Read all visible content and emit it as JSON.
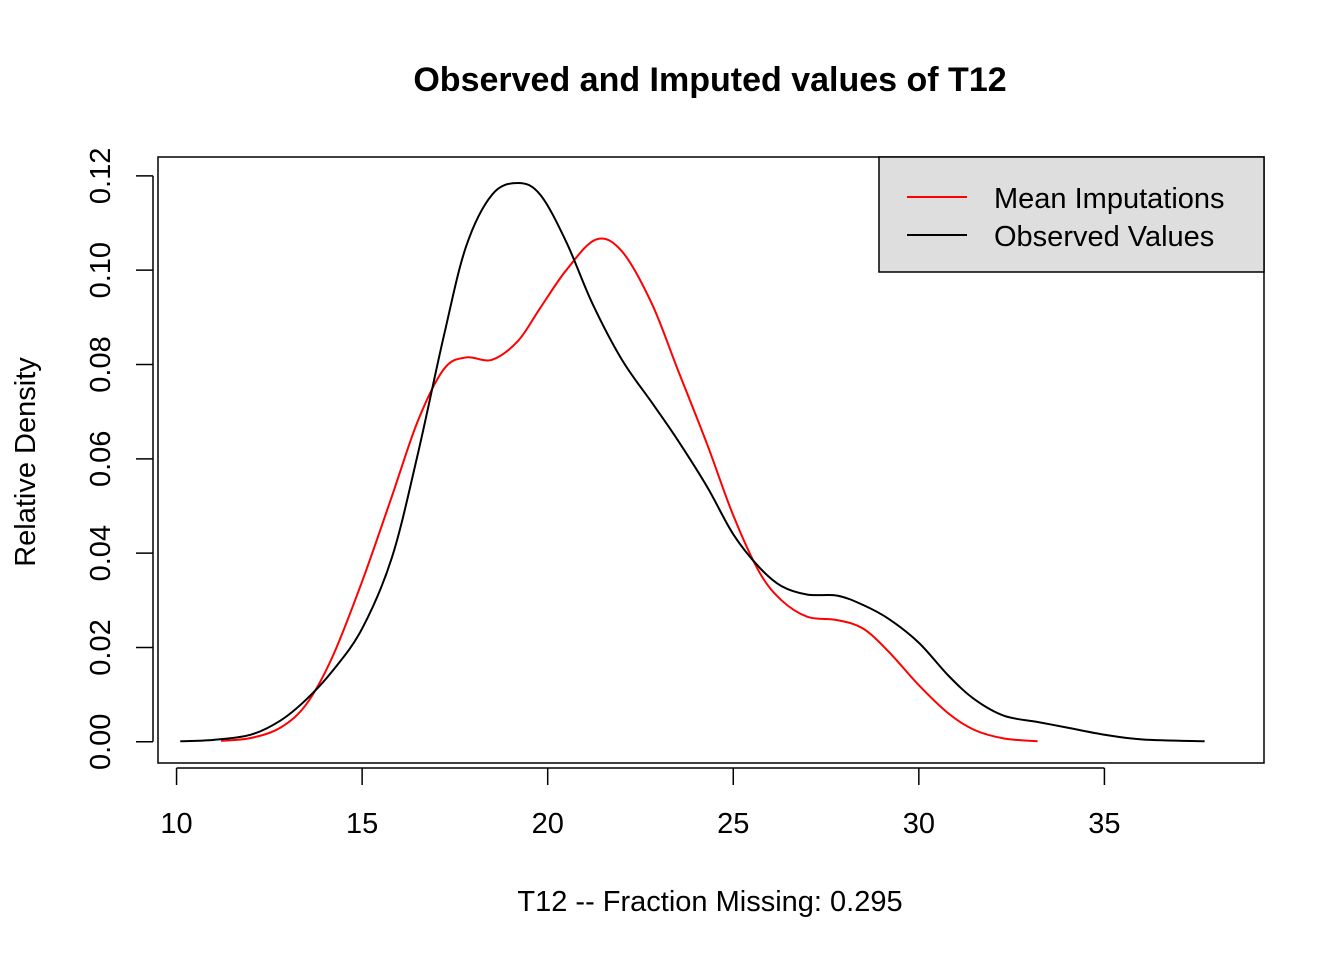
{
  "chart_data": {
    "type": "line",
    "title": "Observed and Imputed values of T12",
    "xlabel": "T12   --  Fraction Missing: 0.295",
    "ylabel": "Relative Density",
    "xlim": [
      9.5,
      39.3
    ],
    "ylim": [
      -0.0045,
      0.124
    ],
    "x_ticks": [
      10,
      15,
      20,
      25,
      30,
      35
    ],
    "y_ticks": [
      0.0,
      0.02,
      0.04,
      0.06,
      0.08,
      0.1,
      0.12
    ],
    "x_tick_labels": [
      "10",
      "15",
      "20",
      "25",
      "30",
      "35"
    ],
    "y_tick_labels": [
      "0.00",
      "0.02",
      "0.04",
      "0.06",
      "0.08",
      "0.10",
      "0.12"
    ],
    "grid": false,
    "legend_position": "top-right",
    "legend_background": "#dedede",
    "series": [
      {
        "name": "Mean Imputations",
        "color": "#ff0000",
        "points": [
          [
            11.2,
            0.0002
          ],
          [
            12.0,
            0.0008
          ],
          [
            12.8,
            0.003
          ],
          [
            13.5,
            0.008
          ],
          [
            14.2,
            0.018
          ],
          [
            15.0,
            0.034
          ],
          [
            15.8,
            0.052
          ],
          [
            16.5,
            0.068
          ],
          [
            17.2,
            0.079
          ],
          [
            17.8,
            0.0815
          ],
          [
            18.5,
            0.081
          ],
          [
            19.2,
            0.085
          ],
          [
            19.8,
            0.092
          ],
          [
            20.5,
            0.1
          ],
          [
            21.3,
            0.1065
          ],
          [
            22.0,
            0.104
          ],
          [
            22.8,
            0.093
          ],
          [
            23.5,
            0.079
          ],
          [
            24.3,
            0.063
          ],
          [
            25.0,
            0.048
          ],
          [
            25.7,
            0.036
          ],
          [
            26.3,
            0.03
          ],
          [
            27.0,
            0.0265
          ],
          [
            27.8,
            0.0258
          ],
          [
            28.5,
            0.024
          ],
          [
            29.2,
            0.019
          ],
          [
            30.0,
            0.012
          ],
          [
            30.8,
            0.006
          ],
          [
            31.5,
            0.0025
          ],
          [
            32.3,
            0.0007
          ],
          [
            33.2,
            0.0001
          ]
        ]
      },
      {
        "name": "Observed Values",
        "color": "#000000",
        "points": [
          [
            10.1,
            0.0001
          ],
          [
            11.0,
            0.0004
          ],
          [
            12.0,
            0.0015
          ],
          [
            12.8,
            0.0045
          ],
          [
            13.5,
            0.009
          ],
          [
            14.2,
            0.015
          ],
          [
            15.0,
            0.024
          ],
          [
            15.8,
            0.039
          ],
          [
            16.5,
            0.061
          ],
          [
            17.2,
            0.086
          ],
          [
            17.8,
            0.105
          ],
          [
            18.5,
            0.116
          ],
          [
            19.2,
            0.1185
          ],
          [
            19.8,
            0.116
          ],
          [
            20.5,
            0.106
          ],
          [
            21.2,
            0.093
          ],
          [
            22.0,
            0.081
          ],
          [
            22.8,
            0.072
          ],
          [
            23.5,
            0.064
          ],
          [
            24.3,
            0.054
          ],
          [
            25.0,
            0.044
          ],
          [
            25.7,
            0.037
          ],
          [
            26.3,
            0.033
          ],
          [
            27.0,
            0.0312
          ],
          [
            27.8,
            0.031
          ],
          [
            28.5,
            0.029
          ],
          [
            29.2,
            0.026
          ],
          [
            30.0,
            0.021
          ],
          [
            30.8,
            0.014
          ],
          [
            31.5,
            0.009
          ],
          [
            32.3,
            0.0055
          ],
          [
            33.2,
            0.0042
          ],
          [
            34.0,
            0.003
          ],
          [
            35.0,
            0.0015
          ],
          [
            36.0,
            0.0005
          ],
          [
            37.7,
            0.0001
          ]
        ]
      }
    ]
  }
}
